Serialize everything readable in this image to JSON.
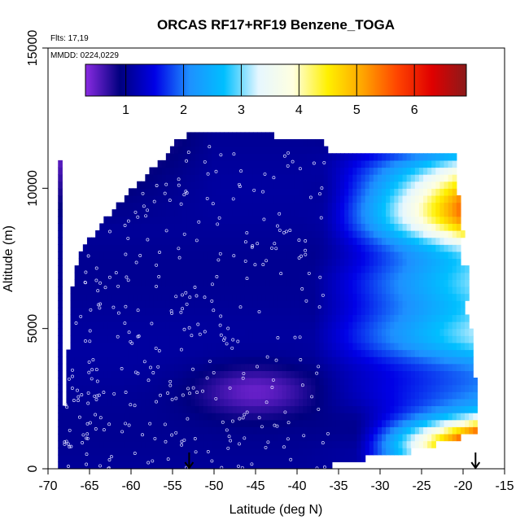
{
  "chart_data": {
    "type": "heatmap",
    "title": "ORCAS RF17+RF19 Benzene_TOGA",
    "annotations": {
      "flights": "Flts: 17,19",
      "dates": "MMDD: 0224,0229"
    },
    "xlabel": "Latitude (deg N)",
    "ylabel": "Altitude (m)",
    "xlim": [
      -70,
      -15
    ],
    "ylim": [
      0,
      15000
    ],
    "x_ticks": [
      -70,
      -65,
      -60,
      -55,
      -50,
      -45,
      -40,
      -35,
      -30,
      -25,
      -20,
      -15
    ],
    "y_ticks": [
      0,
      5000,
      10000,
      15000
    ],
    "grid": false,
    "colorbar": {
      "range": [
        0.3,
        6.9
      ],
      "ticks": [
        1,
        2,
        3,
        4,
        5,
        6
      ],
      "placement": "top inside plot",
      "colors": [
        "#8a2be2",
        "#00007f",
        "#0000e6",
        "#1e90ff",
        "#00bfff",
        "#e6f7ff",
        "#ffffe0",
        "#fff000",
        "#ffa500",
        "#ff4500",
        "#e00000",
        "#8b1a1a"
      ]
    },
    "field": {
      "description_values": [
        {
          "lat": -68,
          "alt": 500,
          "value": 1.0
        },
        {
          "lat": -60,
          "alt": 5000,
          "value": 1.0
        },
        {
          "lat": -50,
          "alt": 3000,
          "value": 0.6
        },
        {
          "lat": -45,
          "alt": 3000,
          "value": 0.5
        },
        {
          "lat": -40,
          "alt": 8000,
          "value": 1.2
        },
        {
          "lat": -35,
          "alt": 6000,
          "value": 2.0
        },
        {
          "lat": -30,
          "alt": 8000,
          "value": 3.0
        },
        {
          "lat": -25,
          "alt": 9000,
          "value": 3.8
        },
        {
          "lat": -21,
          "alt": 9500,
          "value": 5.0
        },
        {
          "lat": -22,
          "alt": 1200,
          "value": 5.5
        },
        {
          "lat": -20,
          "alt": 1000,
          "value": 6.2
        },
        {
          "lat": -26,
          "alt": 600,
          "value": 4.6
        }
      ]
    },
    "markers": {
      "arrows_lat": [
        -53,
        -18.5
      ]
    }
  }
}
